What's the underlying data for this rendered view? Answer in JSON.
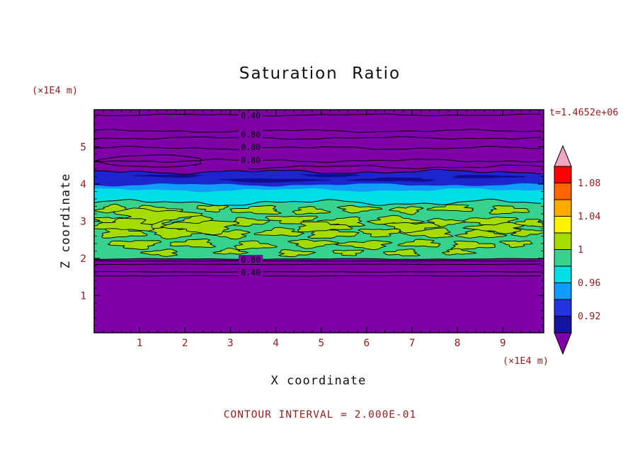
{
  "title": "Saturation Ratio",
  "annotations": {
    "time": "t=1.4652e+06",
    "y_units": "(×1E4 m)",
    "x_units": "(×1E4 m)",
    "contour_interval": "CONTOUR INTERVAL = 2.000E-01"
  },
  "axes": {
    "x_label": "X coordinate",
    "y_label": "Z coordinate",
    "x_ticks": [
      1,
      2,
      3,
      4,
      5,
      6,
      7,
      8,
      9
    ],
    "y_ticks": [
      1,
      2,
      3,
      4,
      5
    ]
  },
  "colorbar": {
    "labels": [
      "1.08",
      "1.04",
      "1",
      "0.96",
      "0.92"
    ],
    "segments_top_to_bottom": [
      "#fb0007",
      "#ff6400",
      "#ffaa00",
      "#fff200",
      "#a4dc00",
      "#37d28d",
      "#00dde4",
      "#0f9cfa",
      "#2432e0",
      "#1414a0"
    ],
    "top_arrow_color": "#f0a6c0",
    "bottom_arrow_color": "#8000a8"
  },
  "chart_data": {
    "type": "heatmap",
    "subtype": "filled-contour",
    "title": "Saturation Ratio",
    "xlabel": "X coordinate",
    "ylabel": "Z coordinate",
    "units": "×1E4 m",
    "time_label": "t=1.4652e+06",
    "contour_interval": 0.2,
    "xlim": [
      0,
      9.9
    ],
    "ylim": [
      0,
      6
    ],
    "x_tick_values": [
      1,
      2,
      3,
      4,
      5,
      6,
      7,
      8,
      9
    ],
    "y_tick_values": [
      1,
      2,
      3,
      4,
      5
    ],
    "color_levels": [
      0.9,
      0.92,
      0.94,
      0.96,
      0.98,
      1.0,
      1.02,
      1.04,
      1.06,
      1.08,
      1.1
    ],
    "colorbar_tick_values": [
      1.08,
      1.04,
      1.0,
      0.96,
      0.92
    ],
    "colors": {
      "purple": "#8000a8",
      "deep_blue": "#1d25cc",
      "navy": "#0d0d8e",
      "light_blue": "#0f9cfa",
      "cyan": "#00dde4",
      "green": "#37d28d",
      "lime": "#a4dc00"
    },
    "background_value": "saturation ratio < 0.90 (purple) above z=4.4 and below z=2.0",
    "bands": [
      {
        "name": "deep-blue-band",
        "color": "deep_blue",
        "z_top": 4.33,
        "z_bottom": 3.96
      },
      {
        "name": "light-blue-strip",
        "color": "light_blue",
        "z_top": 3.98,
        "z_bottom": 3.6
      },
      {
        "name": "cyan-band",
        "color": "cyan",
        "z_top": 3.84,
        "z_bottom": 3.1
      },
      {
        "name": "green-band",
        "color": "green",
        "z_top": 3.5,
        "z_bottom": 1.985
      }
    ],
    "navy_streaks": [
      [
        3.9,
        4.1,
        1.1,
        0.05
      ],
      [
        1.7,
        4.22,
        0.7,
        0.04
      ],
      [
        6.6,
        4.12,
        0.9,
        0.05
      ],
      [
        8.6,
        4.2,
        0.8,
        0.04
      ],
      [
        5.2,
        4.23,
        0.6,
        0.04
      ]
    ],
    "cyan_patches": [
      [
        3.2,
        3.45,
        0.5,
        0.07
      ],
      [
        4.6,
        3.52,
        0.4,
        0.06
      ],
      [
        6.1,
        3.48,
        0.45,
        0.05
      ]
    ],
    "blobs": [
      [
        0.45,
        3.32,
        0.35,
        0.1
      ],
      [
        1.35,
        3.28,
        0.45,
        0.12
      ],
      [
        2.6,
        3.35,
        0.3,
        0.08
      ],
      [
        3.6,
        3.3,
        0.5,
        0.1
      ],
      [
        4.75,
        3.28,
        0.35,
        0.09
      ],
      [
        5.8,
        3.33,
        0.4,
        0.08
      ],
      [
        6.9,
        3.3,
        0.3,
        0.09
      ],
      [
        7.9,
        3.35,
        0.45,
        0.08
      ],
      [
        9.1,
        3.3,
        0.4,
        0.1
      ],
      [
        0.35,
        3.02,
        0.3,
        0.09
      ],
      [
        1.15,
        2.95,
        0.55,
        0.14
      ],
      [
        2.3,
        3.0,
        0.45,
        0.12
      ],
      [
        3.4,
        2.98,
        0.35,
        0.1
      ],
      [
        4.35,
        3.05,
        0.5,
        0.1
      ],
      [
        5.5,
        2.98,
        0.45,
        0.11
      ],
      [
        6.6,
        3.02,
        0.5,
        0.1
      ],
      [
        7.7,
        2.97,
        0.35,
        0.09
      ],
      [
        8.75,
        3.0,
        0.5,
        0.11
      ],
      [
        9.6,
        2.95,
        0.3,
        0.09
      ],
      [
        0.6,
        2.68,
        0.45,
        0.12
      ],
      [
        1.8,
        2.7,
        0.6,
        0.13
      ],
      [
        3.0,
        2.65,
        0.4,
        0.1
      ],
      [
        4.1,
        2.7,
        0.45,
        0.1
      ],
      [
        5.2,
        2.66,
        0.5,
        0.11
      ],
      [
        6.3,
        2.7,
        0.4,
        0.1
      ],
      [
        7.4,
        2.68,
        0.5,
        0.11
      ],
      [
        8.5,
        2.65,
        0.45,
        0.1
      ],
      [
        9.5,
        2.7,
        0.35,
        0.09
      ],
      [
        0.9,
        2.38,
        0.5,
        0.11
      ],
      [
        2.2,
        2.4,
        0.45,
        0.1
      ],
      [
        3.5,
        2.35,
        0.4,
        0.1
      ],
      [
        4.8,
        2.4,
        0.45,
        0.1
      ],
      [
        6.0,
        2.37,
        0.5,
        0.1
      ],
      [
        7.2,
        2.4,
        0.4,
        0.09
      ],
      [
        8.3,
        2.35,
        0.45,
        0.1
      ],
      [
        9.3,
        2.4,
        0.3,
        0.08
      ],
      [
        1.5,
        2.15,
        0.35,
        0.08
      ],
      [
        3.0,
        2.18,
        0.3,
        0.07
      ],
      [
        4.4,
        2.14,
        0.35,
        0.08
      ],
      [
        5.6,
        2.16,
        0.3,
        0.07
      ],
      [
        6.8,
        2.15,
        0.35,
        0.08
      ],
      [
        8.0,
        2.17,
        0.3,
        0.07
      ],
      [
        1.3,
        3.15,
        0.8,
        0.18
      ],
      [
        2.4,
        2.85,
        0.7,
        0.16
      ],
      [
        0.7,
        2.9,
        0.6,
        0.15
      ],
      [
        5.0,
        2.85,
        0.55,
        0.12
      ],
      [
        7.0,
        2.85,
        0.5,
        0.12
      ],
      [
        8.9,
        2.82,
        0.55,
        0.12
      ]
    ],
    "contour_lines": [
      {
        "z": 5.86,
        "amp": 0.03,
        "x0": 0,
        "x1": 9.9
      },
      {
        "z": 5.43,
        "amp": 0.045,
        "x0": 0,
        "x1": 9.9
      },
      {
        "z": 5.24,
        "amp": 0.04,
        "x0": 0,
        "x1": 9.9
      },
      {
        "z": 4.97,
        "amp": 0.05,
        "x0": 0,
        "x1": 9.9
      },
      {
        "z": 4.63,
        "amp": 0.05,
        "x0": 0,
        "x1": 9.9
      },
      {
        "z": 4.46,
        "amp": 0.06,
        "x0": 3.4,
        "x1": 9.9
      },
      {
        "z": 1.93,
        "amp": 0.008,
        "x0": 0,
        "x1": 9.9
      },
      {
        "z": 1.84,
        "amp": 0.008,
        "x0": 0,
        "x1": 9.9
      },
      {
        "z": 1.64,
        "amp": 0.008,
        "x0": 0,
        "x1": 9.9
      },
      {
        "z": 1.53,
        "amp": 0.008,
        "x0": 0,
        "x1": 9.9
      }
    ],
    "contour_loop": {
      "cx": 1.28,
      "cz": 4.62,
      "rx": 1.15,
      "rz": 0.16
    },
    "contour_labels": [
      {
        "text": "0.40",
        "x": 3.45,
        "z": 5.84
      },
      {
        "text": "0.80",
        "x": 3.45,
        "z": 5.33
      },
      {
        "text": "0.80",
        "x": 3.45,
        "z": 4.99
      },
      {
        "text": "0.80",
        "x": 3.45,
        "z": 4.64
      },
      {
        "text": "0.80",
        "x": 3.45,
        "z": 1.96
      },
      {
        "text": "0.40",
        "x": 3.45,
        "z": 1.62
      }
    ]
  }
}
